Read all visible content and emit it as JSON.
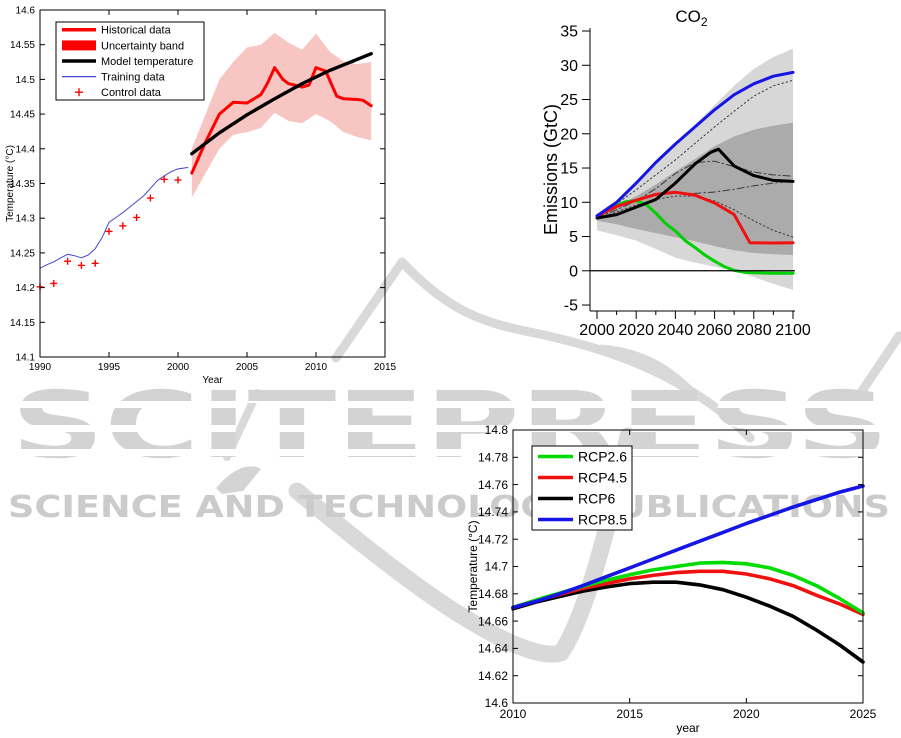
{
  "watermark": {
    "brand": "SCITEPRESS",
    "tagline": "SCIENCE AND TECHNOLOGY PUBLICATIONS",
    "brand_color": "#d3d3d3",
    "tagline_color": "#cbcbcb",
    "swoosh_color": "#d9d9d9"
  },
  "chart_data": [
    {
      "id": "temperature_fit",
      "type": "line",
      "xlabel": "Year",
      "ylabel": "Temperature (°C)",
      "xlim": [
        1990,
        2015
      ],
      "ylim": [
        14.1,
        14.6
      ],
      "xticks": {
        "v": [
          1990,
          1995,
          2000,
          2005,
          2010,
          2015
        ],
        "labels": [
          "1990",
          "1995",
          "2000",
          "2005",
          "2010",
          "2015"
        ]
      },
      "yticks": {
        "v": [
          14.1,
          14.15,
          14.2,
          14.25,
          14.3,
          14.35,
          14.4,
          14.45,
          14.5,
          14.55,
          14.6
        ],
        "labels": [
          "14.1",
          "14.15",
          "14.2",
          "14.25",
          "14.3",
          "14.35",
          "14.4",
          "14.45",
          "14.5",
          "14.55",
          "14.6"
        ]
      },
      "legend": [
        {
          "label": "Historical data",
          "kind": "thickline",
          "color": "#ff0000"
        },
        {
          "label": "Uncertainty band",
          "kind": "patch",
          "color": "#ff0000"
        },
        {
          "label": "Model temperature",
          "kind": "thickline",
          "color": "#000000"
        },
        {
          "label": "Training data",
          "kind": "line",
          "color": "#4646d0"
        },
        {
          "label": "Control data",
          "kind": "plus",
          "color": "#ff0000"
        }
      ],
      "series": [
        {
          "name": "Uncertainty band",
          "kind": "band",
          "color": "#f7c6c3",
          "x": [
            2001,
            2002,
            2003,
            2004,
            2005,
            2006,
            2007,
            2008,
            2009,
            2010,
            2011,
            2012,
            2013,
            2014
          ],
          "upper": [
            14.4,
            14.45,
            14.5,
            14.525,
            14.546,
            14.55,
            14.567,
            14.553,
            14.543,
            14.566,
            14.54,
            14.526,
            14.522,
            14.525
          ],
          "lower": [
            14.33,
            14.365,
            14.4,
            14.42,
            14.424,
            14.43,
            14.452,
            14.44,
            14.437,
            14.45,
            14.44,
            14.424,
            14.417,
            14.412
          ]
        },
        {
          "name": "Training data",
          "kind": "line",
          "color": "#4646d0",
          "w": 1,
          "x": [
            1990,
            1990.5,
            1991,
            1991.5,
            1992,
            1992.5,
            1993,
            1993.5,
            1994,
            1994.5,
            1995,
            1995.5,
            1996,
            1996.5,
            1997,
            1997.5,
            1998,
            1998.5,
            1999,
            1999.5,
            2000,
            2000.7
          ],
          "y": [
            14.228,
            14.233,
            14.237,
            14.243,
            14.248,
            14.246,
            14.243,
            14.247,
            14.256,
            14.272,
            14.294,
            14.301,
            14.308,
            14.316,
            14.324,
            14.332,
            14.343,
            14.354,
            14.361,
            14.367,
            14.371,
            14.373
          ]
        },
        {
          "name": "Control data",
          "kind": "plus",
          "color": "#ff0000",
          "x": [
            1990,
            1991,
            1992,
            1993,
            1994,
            1995,
            1996,
            1997,
            1998,
            1999,
            2000
          ],
          "y": [
            14.201,
            14.206,
            14.238,
            14.232,
            14.235,
            14.281,
            14.289,
            14.301,
            14.329,
            14.356,
            14.355
          ]
        },
        {
          "name": "Historical data",
          "kind": "line",
          "color": "#ff0000",
          "w": 3,
          "x": [
            2001,
            2002,
            2003,
            2004,
            2005,
            2006,
            2006.5,
            2007,
            2007.6,
            2008,
            2009,
            2009.5,
            2010,
            2010.7,
            2011.5,
            2012,
            2013,
            2013.4,
            2014
          ],
          "y": [
            14.365,
            14.41,
            14.45,
            14.467,
            14.466,
            14.478,
            14.495,
            14.517,
            14.5,
            14.494,
            14.489,
            14.492,
            14.517,
            14.512,
            14.476,
            14.472,
            14.471,
            14.47,
            14.462
          ]
        },
        {
          "name": "Model temperature",
          "kind": "line",
          "color": "#000000",
          "w": 3.4,
          "x": [
            2001,
            2003,
            2005,
            2007,
            2009,
            2011,
            2013,
            2014
          ],
          "y": [
            14.393,
            14.423,
            14.449,
            14.472,
            14.494,
            14.513,
            14.529,
            14.537
          ]
        }
      ]
    },
    {
      "id": "co2_emissions",
      "type": "line",
      "title": {
        "text": "CO",
        "sub": "2"
      },
      "ylabel": "Emissions (GtC)",
      "xlim": [
        2000,
        2100
      ],
      "ylim": [
        -5,
        35
      ],
      "xlim_draw": [
        1996.43,
        2100
      ],
      "ylim_draw": [
        -5.87,
        35.44
      ],
      "xticks": {
        "v": [
          2000,
          2020,
          2040,
          2060,
          2080,
          2100
        ],
        "labels": [
          "2000",
          "2020",
          "2040",
          "2060",
          "2080",
          "2100"
        ]
      },
      "xminor": [
        2010,
        2030,
        2050,
        2070,
        2090
      ],
      "yticks": {
        "v": [
          -5,
          0,
          5,
          10,
          15,
          20,
          25,
          30,
          35
        ],
        "labels": [
          "-5",
          "0",
          "5",
          "10",
          "15",
          "20",
          "25",
          "30",
          "35"
        ]
      },
      "series": [
        {
          "name": "Scenario range outer",
          "kind": "band",
          "color": "#d7d7d7",
          "x": [
            2000,
            2010,
            2020,
            2030,
            2040,
            2050,
            2060,
            2070,
            2080,
            2090,
            2100
          ],
          "upper": [
            8.4,
            10.3,
            12.6,
            15.5,
            18.4,
            21.3,
            24.2,
            27.0,
            29.5,
            31.2,
            32.4
          ],
          "lower": [
            5.9,
            5.2,
            4.4,
            3.2,
            1.9,
            1.2,
            0.6,
            0.0,
            -0.9,
            -1.9,
            -2.8
          ]
        },
        {
          "name": "Scenario range inner",
          "kind": "band",
          "color": "#ababab",
          "x": [
            2000,
            2010,
            2020,
            2030,
            2040,
            2050,
            2060,
            2070,
            2080,
            2090,
            2100
          ],
          "upper": [
            8.2,
            9.4,
            10.9,
            12.6,
            14.5,
            16.3,
            18.2,
            19.6,
            20.6,
            21.2,
            21.6
          ],
          "lower": [
            7.3,
            6.8,
            6.1,
            5.5,
            4.9,
            4.3,
            3.6,
            3.0,
            2.6,
            2.4,
            2.3
          ]
        },
        {
          "name": "SRES high",
          "kind": "line",
          "color": "#3a3a3a",
          "w": 1,
          "dash": "dot",
          "x": [
            2000,
            2010,
            2020,
            2030,
            2040,
            2050,
            2060,
            2070,
            2080,
            2090,
            2100
          ],
          "y": [
            8.2,
            9.8,
            11.8,
            14.0,
            16.2,
            18.6,
            21.0,
            23.3,
            25.5,
            27.0,
            27.8
          ]
        },
        {
          "name": "SRES mid-high",
          "kind": "line",
          "color": "#3a3a3a",
          "w": 1,
          "dash": "dashdot",
          "x": [
            2000,
            2010,
            2020,
            2030,
            2040,
            2050,
            2060,
            2070,
            2080,
            2090,
            2100
          ],
          "y": [
            7.7,
            8.9,
            10.2,
            12.0,
            14.2,
            15.8,
            16.0,
            15.2,
            14.4,
            14.0,
            13.8
          ]
        },
        {
          "name": "SRES mid",
          "kind": "line",
          "color": "#3a3a3a",
          "w": 1,
          "dash": "dashdot",
          "x": [
            2000,
            2010,
            2020,
            2030,
            2040,
            2050,
            2060,
            2070,
            2080,
            2090,
            2100
          ],
          "y": [
            7.8,
            9.2,
            10.4,
            11.1,
            11.3,
            11.3,
            11.5,
            11.9,
            12.4,
            12.8,
            13.1
          ]
        },
        {
          "name": "SRES low",
          "kind": "line",
          "color": "#3a3a3a",
          "w": 1,
          "dash": "dot",
          "x": [
            2000,
            2010,
            2020,
            2030,
            2040,
            2050,
            2060,
            2070,
            2080,
            2090,
            2100
          ],
          "y": [
            7.6,
            8.6,
            9.6,
            10.4,
            10.9,
            10.9,
            10.2,
            8.9,
            7.3,
            5.9,
            4.9
          ]
        },
        {
          "name": "RCP2.6",
          "kind": "line",
          "color": "#00d000",
          "w": 3,
          "x": [
            2000,
            2005,
            2010,
            2015,
            2020,
            2025,
            2030,
            2035,
            2040,
            2045,
            2050,
            2055,
            2060,
            2065,
            2070,
            2075,
            2080,
            2090,
            2100
          ],
          "y": [
            8.0,
            8.9,
            9.6,
            10.1,
            10.25,
            9.7,
            8.4,
            6.9,
            5.8,
            4.4,
            3.4,
            2.3,
            1.4,
            0.6,
            0.05,
            -0.2,
            -0.3,
            -0.35,
            -0.35
          ]
        },
        {
          "name": "RCP4.5",
          "kind": "line",
          "color": "#f01010",
          "w": 3,
          "x": [
            2000,
            2010,
            2020,
            2030,
            2040,
            2050,
            2060,
            2070,
            2078,
            2090,
            2100
          ],
          "y": [
            8.0,
            9.4,
            10.3,
            11.15,
            11.45,
            11.05,
            9.9,
            8.2,
            4.1,
            4.05,
            4.1
          ]
        },
        {
          "name": "RCP6",
          "kind": "line",
          "color": "#000000",
          "w": 3,
          "x": [
            2000,
            2010,
            2020,
            2030,
            2040,
            2050,
            2058,
            2062,
            2070,
            2080,
            2090,
            2100
          ],
          "y": [
            7.7,
            8.2,
            9.3,
            10.4,
            12.8,
            15.6,
            17.3,
            17.75,
            15.3,
            13.9,
            13.2,
            13.05
          ]
        },
        {
          "name": "RCP8.5",
          "kind": "line",
          "color": "#1515e6",
          "w": 3,
          "x": [
            2000,
            2010,
            2020,
            2030,
            2040,
            2050,
            2060,
            2070,
            2080,
            2090,
            2100
          ],
          "y": [
            8.0,
            10.0,
            12.8,
            15.8,
            18.5,
            21.0,
            23.5,
            25.7,
            27.3,
            28.4,
            28.96
          ]
        }
      ],
      "hlines": [
        {
          "y": 0,
          "color": "#000000",
          "w": 1.3
        }
      ]
    },
    {
      "id": "rcp_temperature_projections",
      "type": "line",
      "xlabel": "year",
      "ylabel": "Temperature (°C)",
      "xlim": [
        2010,
        2025
      ],
      "ylim": [
        14.6,
        14.8
      ],
      "xticks": {
        "v": [
          2010,
          2015,
          2020,
          2025
        ],
        "labels": [
          "2010",
          "2015",
          "2020",
          "2025"
        ]
      },
      "yticks": {
        "v": [
          14.6,
          14.62,
          14.64,
          14.66,
          14.68,
          14.7,
          14.72,
          14.74,
          14.76,
          14.78,
          14.8
        ],
        "labels": [
          "14.6",
          "14.62",
          "14.64",
          "14.66",
          "14.68",
          "14.7",
          "14.72",
          "14.74",
          "14.76",
          "14.78",
          "14.8"
        ]
      },
      "legend": [
        {
          "label": "RCP2.6",
          "kind": "thickline",
          "color": "#00dc00"
        },
        {
          "label": "RCP4.5",
          "kind": "thickline",
          "color": "#f01010"
        },
        {
          "label": "RCP6",
          "kind": "thickline",
          "color": "#000000"
        },
        {
          "label": "RCP8.5",
          "kind": "thickline",
          "color": "#1515e6"
        }
      ],
      "series": [
        {
          "name": "RCP6",
          "kind": "line",
          "color": "#000000",
          "w": 3.6,
          "x": [
            2010,
            2011,
            2012,
            2013,
            2014,
            2015,
            2016,
            2017,
            2018,
            2019,
            2020,
            2021,
            2022,
            2023,
            2024,
            2025
          ],
          "y": [
            14.669,
            14.674,
            14.678,
            14.682,
            14.685,
            14.6875,
            14.6885,
            14.6885,
            14.6865,
            14.683,
            14.6775,
            14.671,
            14.6635,
            14.6535,
            14.6425,
            14.63
          ]
        },
        {
          "name": "RCP4.5",
          "kind": "line",
          "color": "#f01010",
          "w": 3.6,
          "x": [
            2010,
            2011,
            2012,
            2013,
            2014,
            2015,
            2016,
            2017,
            2018,
            2019,
            2020,
            2021,
            2022,
            2023,
            2024,
            2025
          ],
          "y": [
            14.67,
            14.675,
            14.6795,
            14.684,
            14.6875,
            14.691,
            14.6935,
            14.6955,
            14.6965,
            14.6965,
            14.6945,
            14.691,
            14.686,
            14.679,
            14.6725,
            14.665
          ]
        },
        {
          "name": "RCP2.6",
          "kind": "line",
          "color": "#00dc00",
          "w": 3.6,
          "x": [
            2010,
            2011,
            2012,
            2013,
            2014,
            2015,
            2016,
            2017,
            2018,
            2019,
            2020,
            2021,
            2022,
            2023,
            2024,
            2025
          ],
          "y": [
            14.67,
            14.6755,
            14.6805,
            14.6855,
            14.69,
            14.694,
            14.6975,
            14.7,
            14.7025,
            14.703,
            14.702,
            14.699,
            14.6935,
            14.686,
            14.6765,
            14.666
          ]
        },
        {
          "name": "RCP8.5",
          "kind": "line",
          "color": "#1515e6",
          "w": 3.6,
          "x": [
            2010,
            2011,
            2012,
            2013,
            2014,
            2015,
            2016,
            2017,
            2018,
            2019,
            2020,
            2021,
            2022,
            2023,
            2024,
            2025
          ],
          "y": [
            14.67,
            14.6745,
            14.68,
            14.686,
            14.6925,
            14.699,
            14.7055,
            14.712,
            14.7185,
            14.725,
            14.7315,
            14.7375,
            14.7435,
            14.749,
            14.7545,
            14.759
          ]
        }
      ]
    }
  ]
}
